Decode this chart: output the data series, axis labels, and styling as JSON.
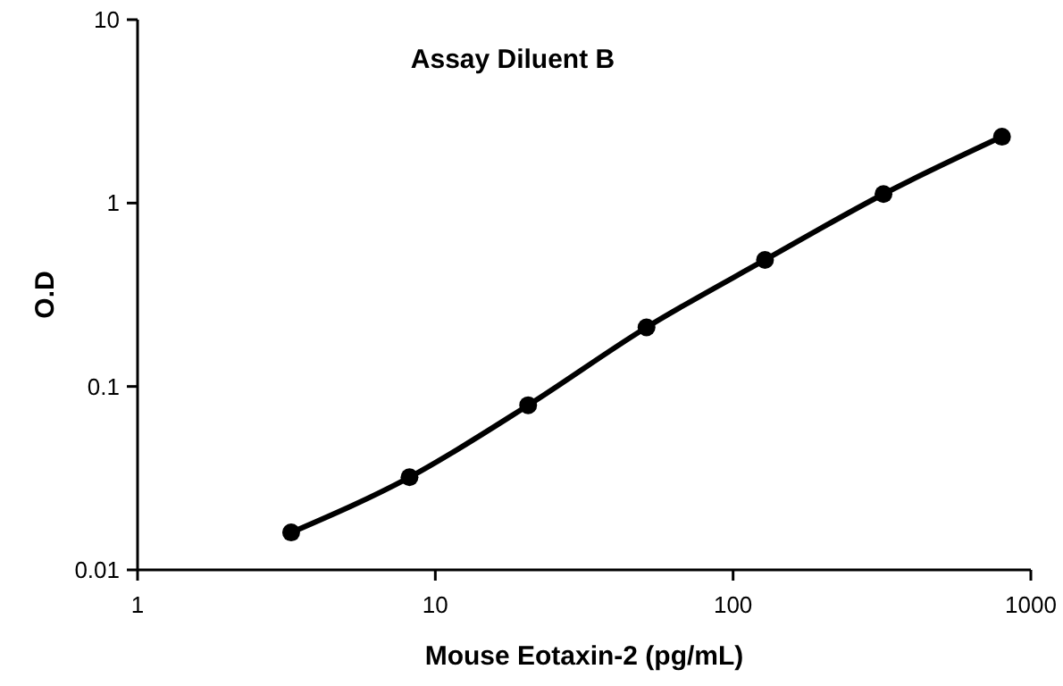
{
  "chart_data": {
    "type": "line",
    "title": "Assay Diluent B",
    "xlabel": "Mouse Eotaxin-2 (pg/mL)",
    "ylabel": "O.D",
    "log": "xy",
    "marker": "circle",
    "line_style": "solid",
    "grid": false,
    "xlim": [
      1,
      1000
    ],
    "xticks": [
      1,
      10,
      100,
      1000
    ],
    "ylim": [
      0.01,
      10
    ],
    "yticks": [
      0.01,
      0.1,
      1,
      10
    ],
    "series": [
      {
        "color": "#000000",
        "x": [
          3.28,
          8.19,
          20.5,
          51.2,
          128,
          320,
          800
        ],
        "values": [
          0.016,
          0.032,
          0.079,
          0.21,
          0.49,
          1.12,
          2.3
        ]
      }
    ]
  }
}
